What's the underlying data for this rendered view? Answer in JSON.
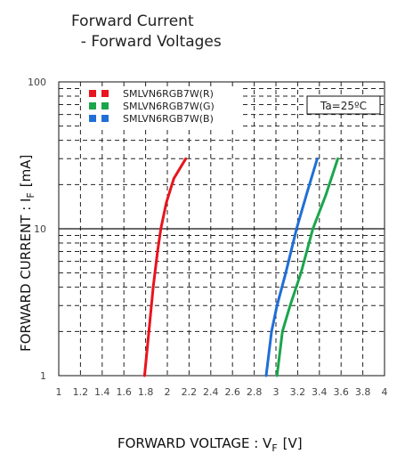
{
  "title_lines": [
    "Forward Current",
    "  - Forward Voltages"
  ],
  "chart_data": {
    "type": "line",
    "title": "Forward Current - Forward Voltages",
    "xlabel": "FORWARD VOLTAGE : V",
    "xlabel_sub": "F",
    "xlabel_unit": "[V]",
    "ylabel": "FORWARD CURRENT : I",
    "ylabel_sub": "F",
    "ylabel_unit": "[mA]",
    "xlim": [
      1,
      4
    ],
    "ylim": [
      1,
      100
    ],
    "yscale": "log",
    "grid": true,
    "xticks": [
      "1",
      "1.2",
      "1.4",
      "1.6",
      "1.8",
      "2",
      "2.2",
      "2.4",
      "2.6",
      "2.8",
      "3",
      "3.2",
      "3.4",
      "3.6",
      "3.8",
      "4"
    ],
    "yticks": [
      "1",
      "10",
      "100"
    ],
    "annotation": "Ta=25ºC",
    "legend_position": "top-left",
    "series": [
      {
        "name": "SMLVN6RGB7W(R)",
        "color": "#e8141e",
        "points": [
          [
            1.79,
            1
          ],
          [
            1.83,
            2
          ],
          [
            1.87,
            4
          ],
          [
            1.91,
            7
          ],
          [
            1.94,
            10
          ],
          [
            1.99,
            15
          ],
          [
            2.06,
            22
          ],
          [
            2.17,
            30
          ]
        ]
      },
      {
        "name": "SMLVN6RGB7W(G)",
        "color": "#1aa64a",
        "points": [
          [
            3.01,
            1
          ],
          [
            3.06,
            2
          ],
          [
            3.13,
            3
          ],
          [
            3.23,
            5
          ],
          [
            3.34,
            10
          ],
          [
            3.46,
            17
          ],
          [
            3.57,
            30
          ]
        ]
      },
      {
        "name": "SMLVN6RGB7W(B)",
        "color": "#1f6fd6",
        "points": [
          [
            2.91,
            1
          ],
          [
            2.96,
            2
          ],
          [
            3.01,
            3
          ],
          [
            3.09,
            5
          ],
          [
            3.19,
            10
          ],
          [
            3.28,
            17
          ],
          [
            3.38,
            30
          ]
        ]
      }
    ]
  }
}
